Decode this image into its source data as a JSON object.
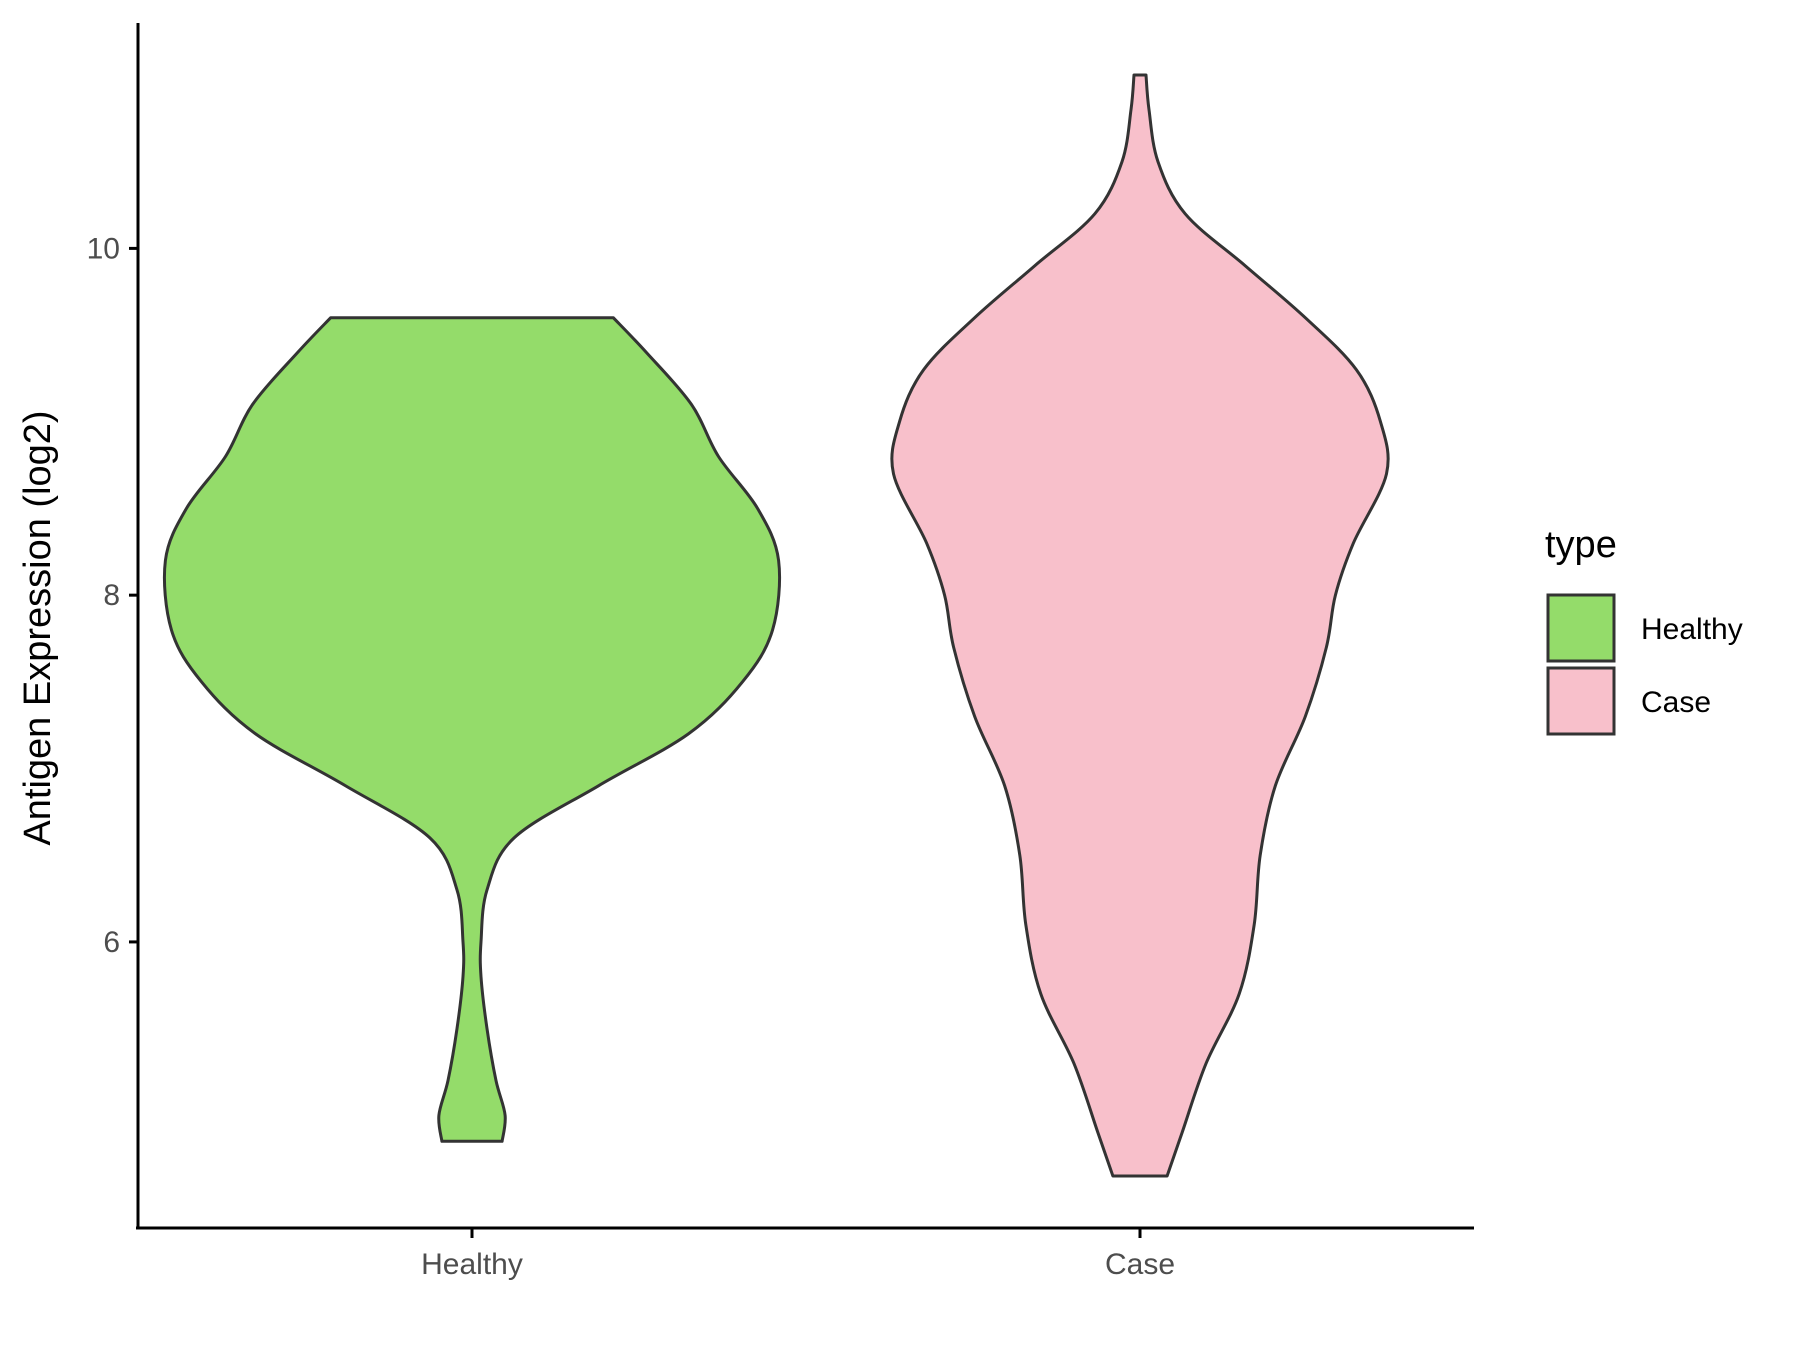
{
  "chart_data": {
    "type": "violin",
    "title": "",
    "xlabel": "",
    "ylabel": "Antigen Expression (log2)",
    "categories": [
      "Healthy",
      "Case"
    ],
    "yticks": [
      "6",
      "8",
      "10"
    ],
    "ylim": [
      4.35,
      11.3
    ],
    "grid": false,
    "legend": {
      "title": "type",
      "position": "right"
    },
    "series": [
      {
        "name": "Healthy",
        "color": "#94dc6a",
        "min": 4.85,
        "max": 9.6,
        "density": [
          [
            4.85,
            0.1
          ],
          [
            5.0,
            0.11
          ],
          [
            5.2,
            0.08
          ],
          [
            5.5,
            0.05
          ],
          [
            5.8,
            0.03
          ],
          [
            6.0,
            0.03
          ],
          [
            6.3,
            0.05
          ],
          [
            6.6,
            0.14
          ],
          [
            6.9,
            0.42
          ],
          [
            7.2,
            0.72
          ],
          [
            7.5,
            0.9
          ],
          [
            7.8,
            1.0
          ],
          [
            8.2,
            1.02
          ],
          [
            8.5,
            0.95
          ],
          [
            8.8,
            0.82
          ],
          [
            9.1,
            0.73
          ],
          [
            9.4,
            0.58
          ],
          [
            9.6,
            0.47
          ]
        ]
      },
      {
        "name": "Case",
        "color": "#f8c0cb",
        "min": 4.65,
        "max": 11.0,
        "density": [
          [
            4.65,
            0.09
          ],
          [
            4.9,
            0.14
          ],
          [
            5.3,
            0.22
          ],
          [
            5.7,
            0.33
          ],
          [
            6.1,
            0.38
          ],
          [
            6.5,
            0.4
          ],
          [
            6.9,
            0.45
          ],
          [
            7.3,
            0.55
          ],
          [
            7.7,
            0.62
          ],
          [
            8.0,
            0.65
          ],
          [
            8.3,
            0.71
          ],
          [
            8.7,
            0.82
          ],
          [
            9.0,
            0.8
          ],
          [
            9.3,
            0.72
          ],
          [
            9.6,
            0.55
          ],
          [
            9.9,
            0.35
          ],
          [
            10.2,
            0.15
          ],
          [
            10.5,
            0.06
          ],
          [
            10.8,
            0.03
          ],
          [
            11.0,
            0.02
          ]
        ]
      }
    ]
  }
}
